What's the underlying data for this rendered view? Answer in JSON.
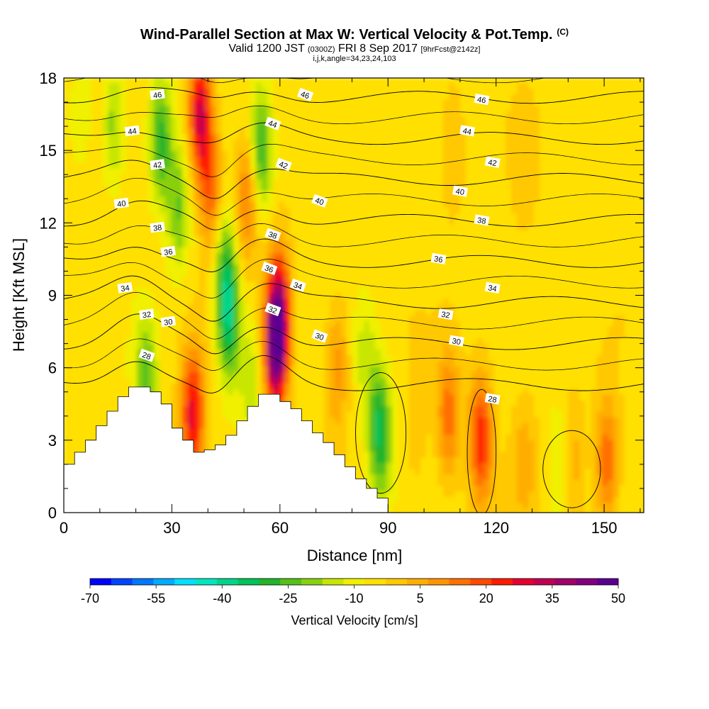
{
  "header": {
    "title": "Wind-Parallel Section at Max W: Vertical Velocity & Pot.Temp.",
    "copyright": "(C)",
    "valid_prefix": "Valid 1200 JST",
    "valid_utc": "(0300Z)",
    "valid_date": "FRI 8 Sep 2017",
    "forecast": "[9hrFcst@2142z]",
    "indices": "i,j,k,angle=34,23,24,103"
  },
  "chart_data": {
    "type": "heatmap",
    "xlabel": "Distance [nm]",
    "ylabel": "Height [Kft MSL]",
    "xlim": [
      0,
      161
    ],
    "ylim": [
      0,
      18
    ],
    "x_ticks": [
      0,
      30,
      60,
      90,
      120,
      150
    ],
    "y_ticks": [
      0,
      3,
      6,
      9,
      12,
      15,
      18
    ],
    "colorbar": {
      "label": "Vertical Velocity [cm/s]",
      "levels": [
        -70,
        -65,
        -60,
        -55,
        -50,
        -45,
        -40,
        -35,
        -30,
        -25,
        -20,
        -15,
        -10,
        -5,
        0,
        5,
        10,
        15,
        20,
        25,
        30,
        35,
        40,
        45,
        50
      ],
      "tick_labels": [
        -70,
        -55,
        -40,
        -25,
        -10,
        5,
        20,
        35,
        50
      ],
      "colors": [
        "#0000ff",
        "#0044ff",
        "#0077ff",
        "#00aaff",
        "#00e0ff",
        "#00e6c0",
        "#00d48a",
        "#00c25a",
        "#22b42a",
        "#55c01a",
        "#88d010",
        "#c8e600",
        "#f0f000",
        "#ffe000",
        "#ffc800",
        "#ffae00",
        "#ff9400",
        "#ff7000",
        "#ff4a00",
        "#ff1a00",
        "#e40030",
        "#c00050",
        "#a0006a",
        "#800080",
        "#5a0090"
      ]
    },
    "velocity_features": [
      {
        "x": 5,
        "z": 16.5,
        "w": -8
      },
      {
        "x": 14,
        "z": 16,
        "w": -16
      },
      {
        "x": 27,
        "z": 15.5,
        "w": -25
      },
      {
        "x": 32,
        "z": 12.5,
        "w": -18
      },
      {
        "x": 23,
        "z": 5.5,
        "w": -20
      },
      {
        "x": 38,
        "z": 16.5,
        "w": 38
      },
      {
        "x": 41,
        "z": 13.5,
        "w": 22
      },
      {
        "x": 36,
        "z": 4,
        "w": 35
      },
      {
        "x": 45,
        "z": 10,
        "w": -20
      },
      {
        "x": 46,
        "z": 7.8,
        "w": -28
      },
      {
        "x": 52,
        "z": 5.5,
        "w": -12
      },
      {
        "x": 51,
        "z": 13,
        "w": 20
      },
      {
        "x": 55,
        "z": 15,
        "w": -24
      },
      {
        "x": 59,
        "z": 6.8,
        "w": 50
      },
      {
        "x": 60,
        "z": 8.5,
        "w": 30
      },
      {
        "x": 76,
        "z": 6,
        "w": 15
      },
      {
        "x": 88,
        "z": 3.3,
        "w": -30
      },
      {
        "x": 84,
        "z": 6.5,
        "w": -10
      },
      {
        "x": 107,
        "z": 4,
        "w": 20
      },
      {
        "x": 116,
        "z": 3,
        "w": 30
      },
      {
        "x": 108,
        "z": 15,
        "w": 8
      },
      {
        "x": 141,
        "z": 2,
        "w": 12
      },
      {
        "x": 151,
        "z": 2,
        "w": 22
      },
      {
        "x": 138,
        "z": 1.8,
        "w": -12
      },
      {
        "x": 128,
        "z": 2.2,
        "w": 10
      },
      {
        "x": 98,
        "z": 3,
        "w": 5
      },
      {
        "x": 128,
        "z": 14,
        "w": 5
      }
    ],
    "terrain_profile": {
      "x": [
        0,
        3,
        6,
        9,
        12,
        15,
        18,
        21,
        24,
        27,
        30,
        33,
        36,
        39,
        42,
        45,
        48,
        51,
        54,
        57,
        60,
        63,
        66,
        69,
        72,
        75,
        78,
        81,
        84,
        87,
        90
      ],
      "z": [
        2.0,
        2.5,
        3.0,
        3.6,
        4.2,
        4.8,
        5.2,
        5.2,
        5.0,
        4.5,
        3.5,
        3.0,
        2.5,
        2.6,
        2.8,
        3.2,
        3.8,
        4.4,
        4.9,
        4.9,
        4.6,
        4.3,
        3.8,
        3.3,
        2.9,
        2.4,
        1.9,
        1.4,
        1.0,
        0.6,
        0.3
      ]
    },
    "theta_contours": [
      {
        "level": 28,
        "label": "28",
        "label_pos": [
          23,
          6.5
        ]
      },
      {
        "level": 28,
        "label": "28",
        "label_pos": [
          119,
          4.7
        ]
      },
      {
        "level": 30,
        "label": "30",
        "label_pos": [
          29,
          7.9
        ]
      },
      {
        "level": 30,
        "label": "30",
        "label_pos": [
          71,
          7.3
        ]
      },
      {
        "level": 30,
        "label": "30",
        "label_pos": [
          109,
          7.1
        ]
      },
      {
        "level": 32,
        "label": "32",
        "label_pos": [
          23,
          8.2
        ]
      },
      {
        "level": 32,
        "label": "32",
        "label_pos": [
          58,
          8.4
        ]
      },
      {
        "level": 32,
        "label": "32",
        "label_pos": [
          106,
          8.2
        ]
      },
      {
        "level": 34,
        "label": "34",
        "label_pos": [
          17,
          9.3
        ]
      },
      {
        "level": 34,
        "label": "34",
        "label_pos": [
          65,
          9.4
        ]
      },
      {
        "level": 34,
        "label": "34",
        "label_pos": [
          119,
          9.3
        ]
      },
      {
        "level": 36,
        "label": "36",
        "label_pos": [
          29,
          10.8
        ]
      },
      {
        "level": 36,
        "label": "36",
        "label_pos": [
          57,
          10.1
        ]
      },
      {
        "level": 36,
        "label": "36",
        "label_pos": [
          104,
          10.5
        ]
      },
      {
        "level": 38,
        "label": "38",
        "label_pos": [
          26,
          11.8
        ]
      },
      {
        "level": 38,
        "label": "38",
        "label_pos": [
          58,
          11.5
        ]
      },
      {
        "level": 38,
        "label": "38",
        "label_pos": [
          116,
          12.1
        ]
      },
      {
        "level": 40,
        "label": "40",
        "label_pos": [
          16,
          12.8
        ]
      },
      {
        "level": 40,
        "label": "40",
        "label_pos": [
          71,
          12.9
        ]
      },
      {
        "level": 40,
        "label": "40",
        "label_pos": [
          110,
          13.3
        ]
      },
      {
        "level": 42,
        "label": "42",
        "label_pos": [
          26,
          14.4
        ]
      },
      {
        "level": 42,
        "label": "42",
        "label_pos": [
          61,
          14.4
        ]
      },
      {
        "level": 42,
        "label": "42",
        "label_pos": [
          119,
          14.5
        ]
      },
      {
        "level": 44,
        "label": "44",
        "label_pos": [
          19,
          15.8
        ]
      },
      {
        "level": 44,
        "label": "44",
        "label_pos": [
          58,
          16.1
        ]
      },
      {
        "level": 44,
        "label": "44",
        "label_pos": [
          112,
          15.8
        ]
      },
      {
        "level": 46,
        "label": "46",
        "label_pos": [
          26,
          17.3
        ]
      },
      {
        "level": 46,
        "label": "46",
        "label_pos": [
          67,
          17.3
        ]
      },
      {
        "level": 46,
        "label": "46",
        "label_pos": [
          116,
          17.1
        ]
      }
    ]
  }
}
